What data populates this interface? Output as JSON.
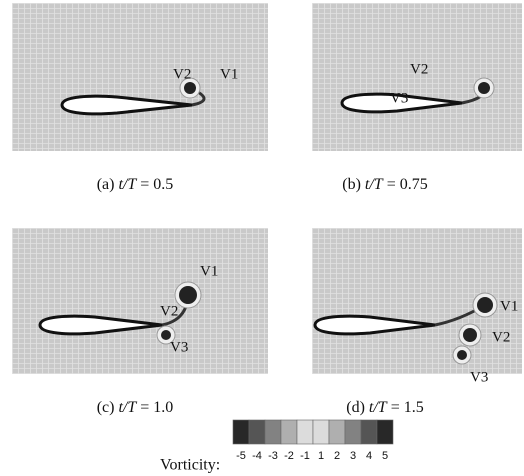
{
  "panels": [
    {
      "tag": "(a)",
      "variable": "t/T",
      "value": "= 0.5",
      "vortices": [
        "V2",
        "V1"
      ]
    },
    {
      "tag": "(b)",
      "variable": "t/T",
      "value": "= 0.75",
      "vortices": [
        "V2",
        "V3"
      ]
    },
    {
      "tag": "(c)",
      "variable": "t/T",
      "value": "= 1.0",
      "vortices": [
        "V1",
        "V2",
        "V3"
      ]
    },
    {
      "tag": "(d)",
      "variable": "t/T",
      "value": "= 1.5",
      "vortices": [
        "V1",
        "V2",
        "V3"
      ]
    }
  ],
  "colorbar": {
    "label": "Vorticity:",
    "ticks": [
      -5,
      -4,
      -3,
      -2,
      -1,
      1,
      2,
      3,
      4,
      5
    ]
  }
}
